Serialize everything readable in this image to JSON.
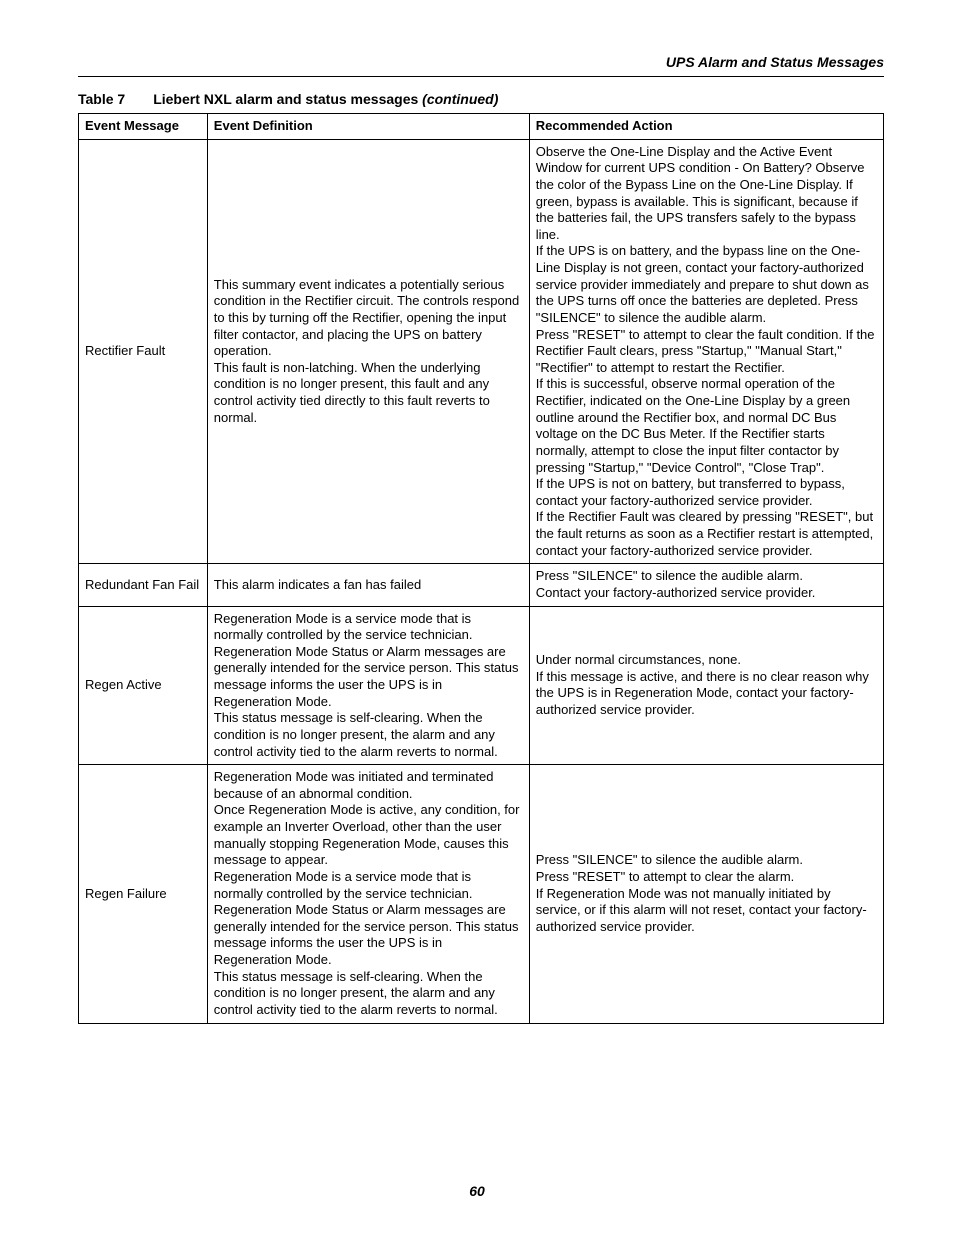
{
  "running_head": "UPS Alarm and Status Messages",
  "caption": {
    "table_label": "Table 7",
    "title": "Liebert NXL alarm and status messages",
    "continued": "(continued)"
  },
  "columns": {
    "c1": "Event Message",
    "c2": "Event Definition",
    "c3": "Recommended Action"
  },
  "rows": [
    {
      "msg": "Rectifier Fault",
      "def": [
        "This summary event indicates a potentially serious condition in the Rectifier circuit. The controls respond to this by turning off the Rectifier, opening the input filter contactor, and placing the UPS on battery operation.",
        "This fault is non-latching. When the underlying condition is no longer present, this fault and any control activity tied directly to this fault reverts to normal."
      ],
      "act": [
        "Observe the One-Line Display and the Active Event Window for current UPS condition - On Battery? Observe the color of the Bypass Line on the One-Line Display. If green, bypass is available. This is significant, because if the batteries fail, the UPS transfers safely to the bypass line.",
        "If the UPS is on battery, and the bypass line on the One-Line Display is not green, contact your factory-authorized service provider immediately and prepare to shut down as the UPS turns off once the batteries are depleted. Press \"SILENCE\" to silence the audible alarm.",
        "Press \"RESET\" to attempt to clear the fault condition. If the Rectifier Fault clears, press \"Startup,\" \"Manual Start,\" \"Rectifier\" to attempt to restart the Rectifier.",
        "If this is successful, observe normal operation of the Rectifier, indicated on the One-Line Display by a green outline around the Rectifier box, and normal DC Bus voltage on the DC Bus Meter. If the Rectifier starts normally, attempt to close the input filter contactor by pressing \"Startup,\" \"Device Control\", \"Close Trap\".",
        "If the UPS is not on battery, but transferred to bypass, contact your factory-authorized service provider.",
        "If the Rectifier Fault was cleared by pressing \"RESET\", but the fault returns as soon as a Rectifier restart is attempted, contact your factory-authorized service provider."
      ]
    },
    {
      "msg": "Redundant Fan Fail",
      "def": [
        "This alarm indicates a fan has failed"
      ],
      "act": [
        "Press \"SILENCE\" to silence the audible alarm.",
        "Contact your factory-authorized service provider."
      ]
    },
    {
      "msg": "Regen Active",
      "def": [
        "Regeneration Mode is a service mode that is normally controlled by the service technician. Regeneration Mode Status or Alarm messages are generally intended for the service person. This status message informs the user the UPS is in Regeneration Mode.",
        "This status message is self-clearing. When the condition is no longer present, the alarm and any control activity tied to the alarm reverts to normal."
      ],
      "act": [
        "Under normal circumstances, none.",
        "If this message is active, and there is no clear reason why the UPS is in Regeneration Mode, contact your factory-authorized service provider."
      ]
    },
    {
      "msg": "Regen Failure",
      "def": [
        "Regeneration Mode was initiated and terminated because of an abnormal condition.",
        "Once Regeneration Mode is active, any condition, for example an Inverter Overload, other than the user manually stopping Regeneration Mode, causes this message to appear.",
        "Regeneration Mode is a service mode that is normally controlled by the service technician. Regeneration Mode Status or Alarm messages are generally intended for the service person. This status message informs the user the UPS is in Regeneration Mode.",
        "This status message is self-clearing. When the condition is no longer present, the alarm and any control activity tied to the alarm reverts to normal."
      ],
      "act": [
        "Press \"SILENCE\" to silence the audible alarm.",
        "Press \"RESET\" to attempt to clear the alarm.",
        "If Regeneration Mode was not manually initiated by service, or if this alarm will not reset, contact your factory-authorized service provider."
      ]
    }
  ],
  "page_number": "60"
}
